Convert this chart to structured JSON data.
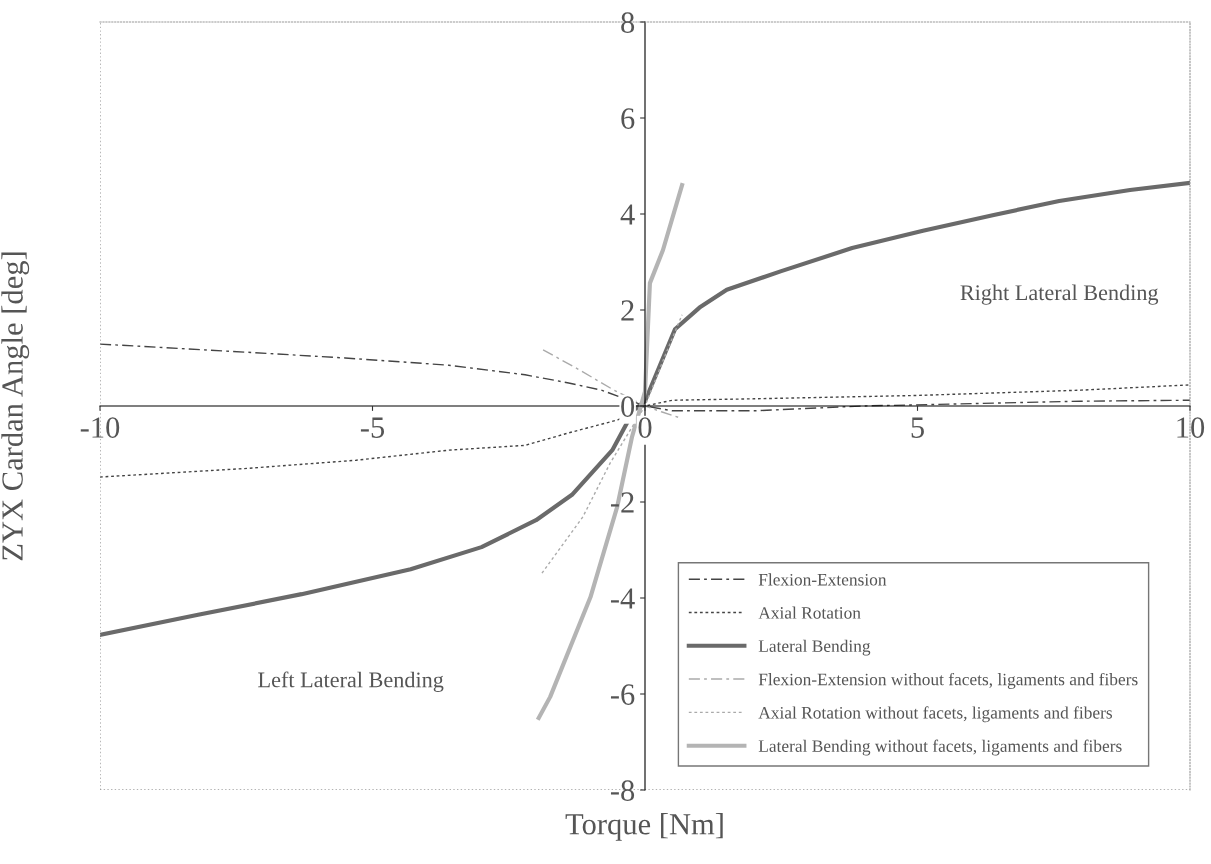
{
  "chart_data": {
    "type": "line",
    "xlabel": "Torque [Nm]",
    "ylabel": "ZYX Cardan Angle [deg]",
    "xlim": [
      -10,
      10
    ],
    "ylim": [
      -8,
      8
    ],
    "xticks": [
      -10,
      -5,
      0,
      5,
      10
    ],
    "yticks": [
      -8,
      -6,
      -4,
      -2,
      0,
      2,
      4,
      6,
      8
    ],
    "grid": false,
    "legend": "bottom right",
    "marker": "none",
    "series": [
      {
        "name": "Flexion-Extension",
        "color": "#444444",
        "line_style": "dashdot",
        "x": [
          -10,
          -7.3,
          -5.5,
          -3.6,
          -2.2,
          -1.4,
          -0.8,
          0,
          0.5,
          2,
          4,
          6,
          8,
          10
        ],
        "values": [
          1.29,
          1.12,
          1.0,
          0.85,
          0.65,
          0.48,
          0.33,
          0,
          -0.1,
          -0.1,
          0,
          0.05,
          0.1,
          0.12
        ]
      },
      {
        "name": "Axial Rotation",
        "color": "#444444",
        "line_style": "dotted",
        "x": [
          -10,
          -7.3,
          -5.3,
          -3.6,
          -2.2,
          -1.4,
          -0.5,
          0,
          0.5,
          2,
          5,
          8,
          10
        ],
        "values": [
          -1.48,
          -1.3,
          -1.13,
          -0.92,
          -0.82,
          -0.56,
          -0.29,
          0,
          0.12,
          0.15,
          0.22,
          0.33,
          0.44
        ]
      },
      {
        "name": "Lateral Bending",
        "color": "#6a6a6a",
        "line_style": "solid",
        "x": [
          -10,
          -8.2,
          -6.3,
          -4.3,
          -3.0,
          -2.0,
          -1.34,
          -0.6,
          -0.2,
          0,
          0.55,
          1.0,
          1.5,
          2.5,
          3.8,
          5.1,
          6.4,
          7.6,
          8.9,
          10
        ],
        "values": [
          -4.77,
          -4.35,
          -3.92,
          -3.4,
          -2.94,
          -2.38,
          -1.85,
          -0.92,
          -0.08,
          0.1,
          1.6,
          2.05,
          2.42,
          2.81,
          3.29,
          3.65,
          3.98,
          4.27,
          4.5,
          4.65
        ]
      },
      {
        "name": "Flexion-Extension without facets, ligaments and fibers",
        "color": "#aaaaaa",
        "line_style": "dashdot",
        "x": [
          -1.87,
          -1.2,
          -0.6,
          0,
          0.3,
          0.65
        ],
        "values": [
          1.17,
          0.75,
          0.35,
          0,
          -0.12,
          -0.25
        ]
      },
      {
        "name": "Axial Rotation without facets, ligaments and fibers",
        "color": "#aaaaaa",
        "line_style": "dotted",
        "x": [
          -1.89,
          -1.14,
          -0.64,
          0,
          0.35,
          0.68
        ],
        "values": [
          -3.48,
          -2.31,
          -1.19,
          0,
          1.0,
          1.9
        ]
      },
      {
        "name": "Lateral Bending without facets, ligaments and fibers",
        "color": "#b4b4b4",
        "line_style": "solid",
        "x": [
          -1.95,
          -1.74,
          -1.0,
          -0.51,
          -0.24,
          0,
          0.09,
          0.33,
          0.68
        ],
        "values": [
          -6.5,
          -6.06,
          -3.98,
          -2.1,
          -0.65,
          0.3,
          2.56,
          3.25,
          4.6
        ]
      }
    ],
    "annotations": [
      "Right Lateral Bending",
      "Left Lateral Bending"
    ]
  }
}
